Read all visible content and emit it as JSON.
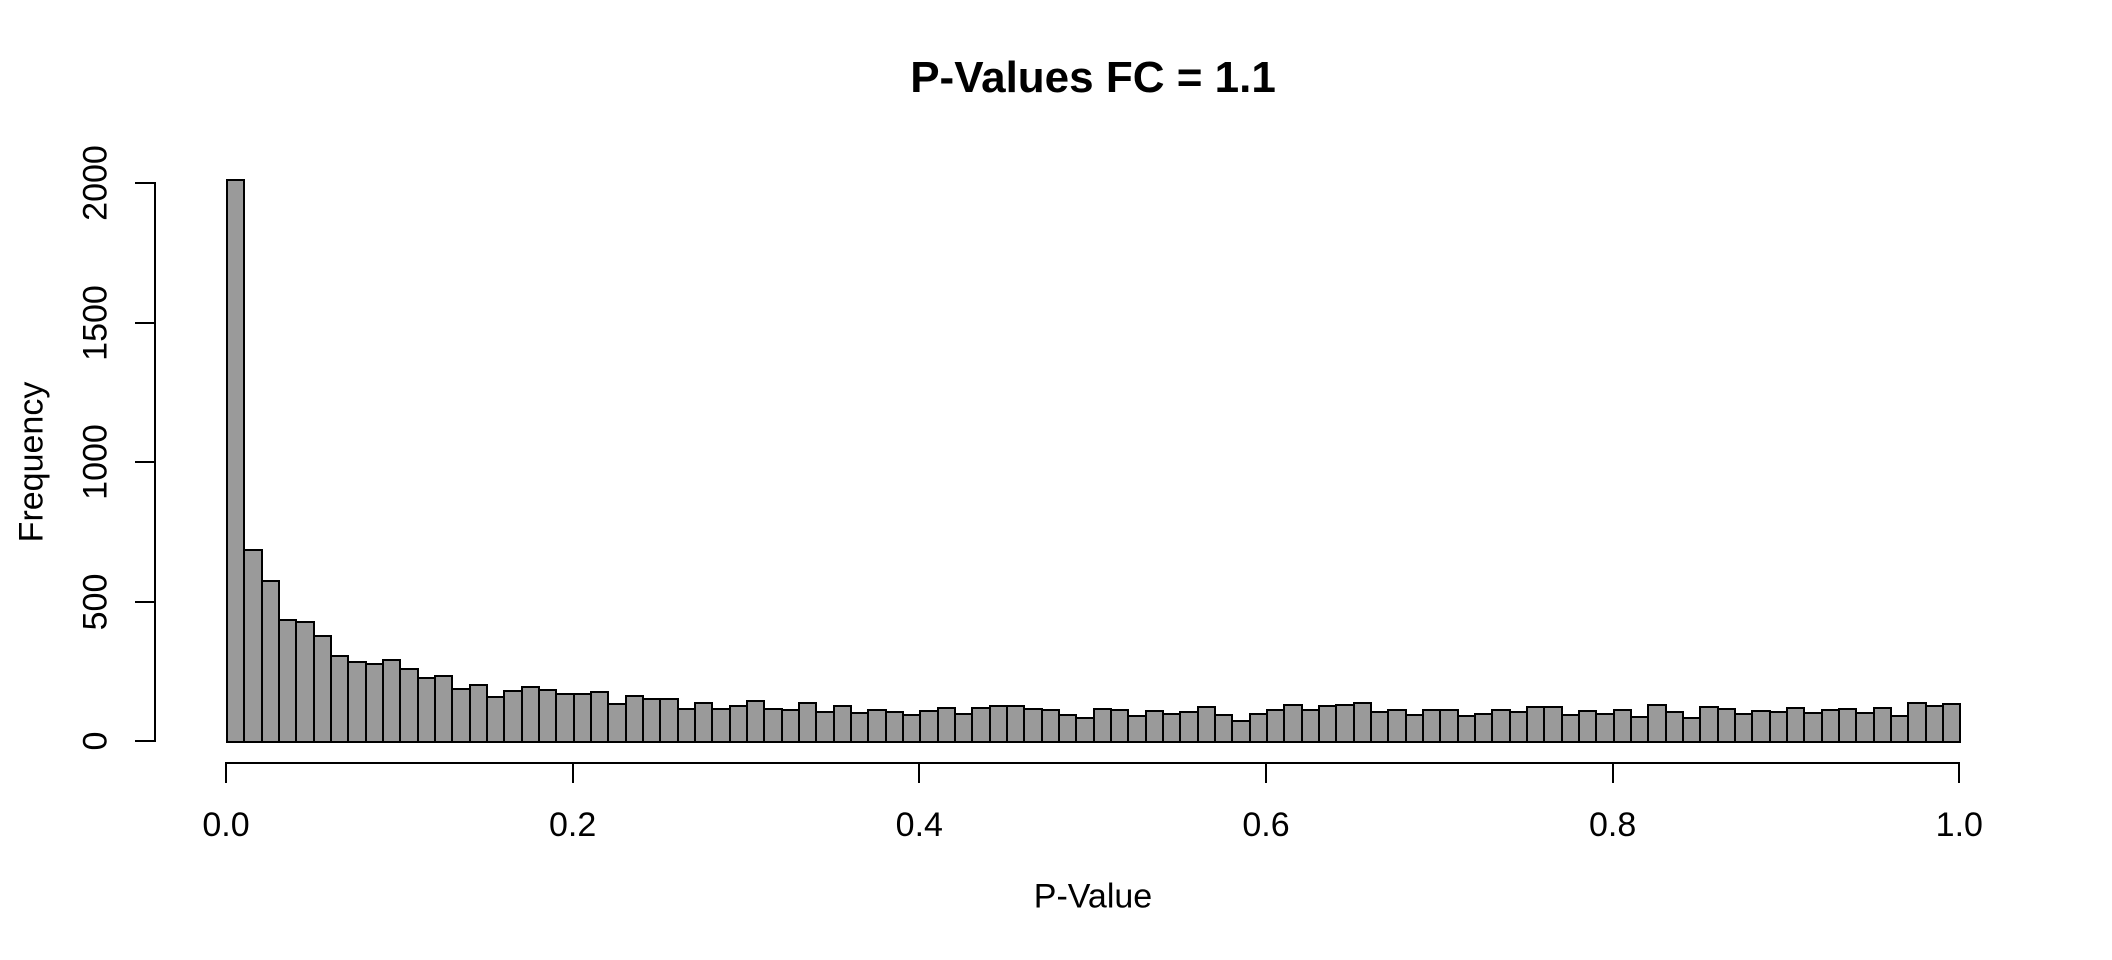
{
  "chart_data": {
    "type": "histogram",
    "title": "P-Values FC = 1.1",
    "xlabel": "P-Value",
    "ylabel": "Frequency",
    "bin_start": 0.0,
    "bin_width": 0.01,
    "values": [
      2015,
      688,
      578,
      439,
      430,
      381,
      309,
      288,
      278,
      293,
      263,
      228,
      236,
      190,
      203,
      161,
      184,
      196,
      185,
      172,
      172,
      178,
      137,
      165,
      155,
      154,
      120,
      141,
      119,
      128,
      148,
      119,
      115,
      141,
      109,
      128,
      103,
      114,
      108,
      98,
      111,
      122,
      101,
      123,
      128,
      128,
      118,
      116,
      97,
      87,
      117,
      115,
      93,
      111,
      101,
      107,
      125,
      97,
      77,
      102,
      114,
      133,
      114,
      128,
      131,
      141,
      106,
      116,
      95,
      113,
      113,
      92,
      101,
      116,
      107,
      125,
      125,
      98,
      110,
      100,
      114,
      89,
      133,
      109,
      85,
      126,
      119,
      101,
      111,
      107,
      123,
      104,
      115,
      118,
      104,
      123,
      94,
      140,
      130,
      136
    ],
    "xlim": [
      0.0,
      1.0
    ],
    "ylim": [
      0,
      2000
    ],
    "x_tick_values": [
      0.0,
      0.2,
      0.4,
      0.6,
      0.8,
      1.0
    ],
    "x_tick_labels": [
      "0.0",
      "0.2",
      "0.4",
      "0.6",
      "0.8",
      "1.0"
    ],
    "y_tick_values": [
      0,
      500,
      1000,
      1500,
      2000
    ],
    "y_tick_labels": [
      "0",
      "500",
      "1000",
      "1500",
      "2000"
    ],
    "grid": false,
    "legend_position": "none",
    "colors": {
      "bar_fill": "#9a9a9a",
      "bar_border": "#000000",
      "axis": "#000000",
      "text": "#000000",
      "background": "#ffffff"
    }
  }
}
